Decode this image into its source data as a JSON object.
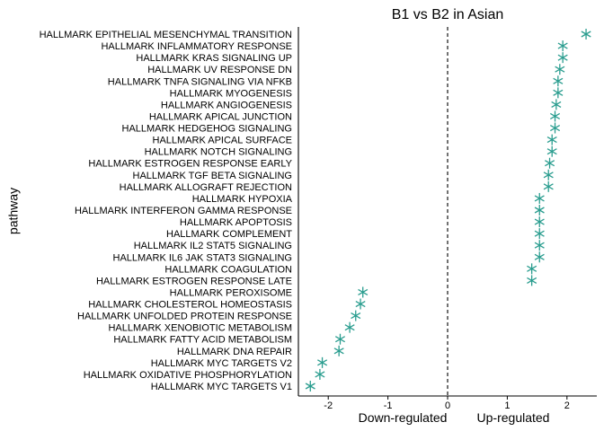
{
  "chart_data": {
    "type": "scatter",
    "title": "B1 vs B2 in Asian",
    "ylabel": "pathway",
    "xlabels": {
      "left": "Down-regulated",
      "right": "Up-regulated"
    },
    "xlim": [
      -2.5,
      2.5
    ],
    "xticks": [
      -2,
      -1,
      0,
      1,
      2
    ],
    "reference_line_x": 0,
    "grid": false,
    "marker": "asterisk",
    "point_color": "#2a9d8f",
    "categories": [
      "HALLMARK EPITHELIAL MESENCHYMAL TRANSITION",
      "HALLMARK INFLAMMATORY RESPONSE",
      "HALLMARK KRAS SIGNALING UP",
      "HALLMARK UV RESPONSE DN",
      "HALLMARK TNFA SIGNALING VIA NFKB",
      "HALLMARK MYOGENESIS",
      "HALLMARK ANGIOGENESIS",
      "HALLMARK APICAL JUNCTION",
      "HALLMARK HEDGEHOG SIGNALING",
      "HALLMARK APICAL SURFACE",
      "HALLMARK NOTCH SIGNALING",
      "HALLMARK ESTROGEN RESPONSE EARLY",
      "HALLMARK TGF BETA SIGNALING",
      "HALLMARK ALLOGRAFT REJECTION",
      "HALLMARK HYPOXIA",
      "HALLMARK INTERFERON GAMMA RESPONSE",
      "HALLMARK APOPTOSIS",
      "HALLMARK COMPLEMENT",
      "HALLMARK IL2 STAT5 SIGNALING",
      "HALLMARK IL6 JAK STAT3 SIGNALING",
      "HALLMARK COAGULATION",
      "HALLMARK ESTROGEN RESPONSE LATE",
      "HALLMARK PEROXISOME",
      "HALLMARK CHOLESTEROL HOMEOSTASIS",
      "HALLMARK UNFOLDED PROTEIN RESPONSE",
      "HALLMARK XENOBIOTIC METABOLISM",
      "HALLMARK FATTY ACID METABOLISM",
      "HALLMARK DNA REPAIR",
      "HALLMARK MYC TARGETS V2",
      "HALLMARK OXIDATIVE PHOSPHORYLATION",
      "HALLMARK MYC TARGETS V1"
    ],
    "values": [
      2.32,
      1.93,
      1.93,
      1.88,
      1.85,
      1.85,
      1.82,
      1.8,
      1.8,
      1.75,
      1.75,
      1.71,
      1.69,
      1.69,
      1.54,
      1.54,
      1.54,
      1.54,
      1.54,
      1.54,
      1.41,
      1.41,
      -1.42,
      -1.46,
      -1.54,
      -1.64,
      -1.8,
      -1.82,
      -2.1,
      -2.14,
      -2.3
    ]
  }
}
